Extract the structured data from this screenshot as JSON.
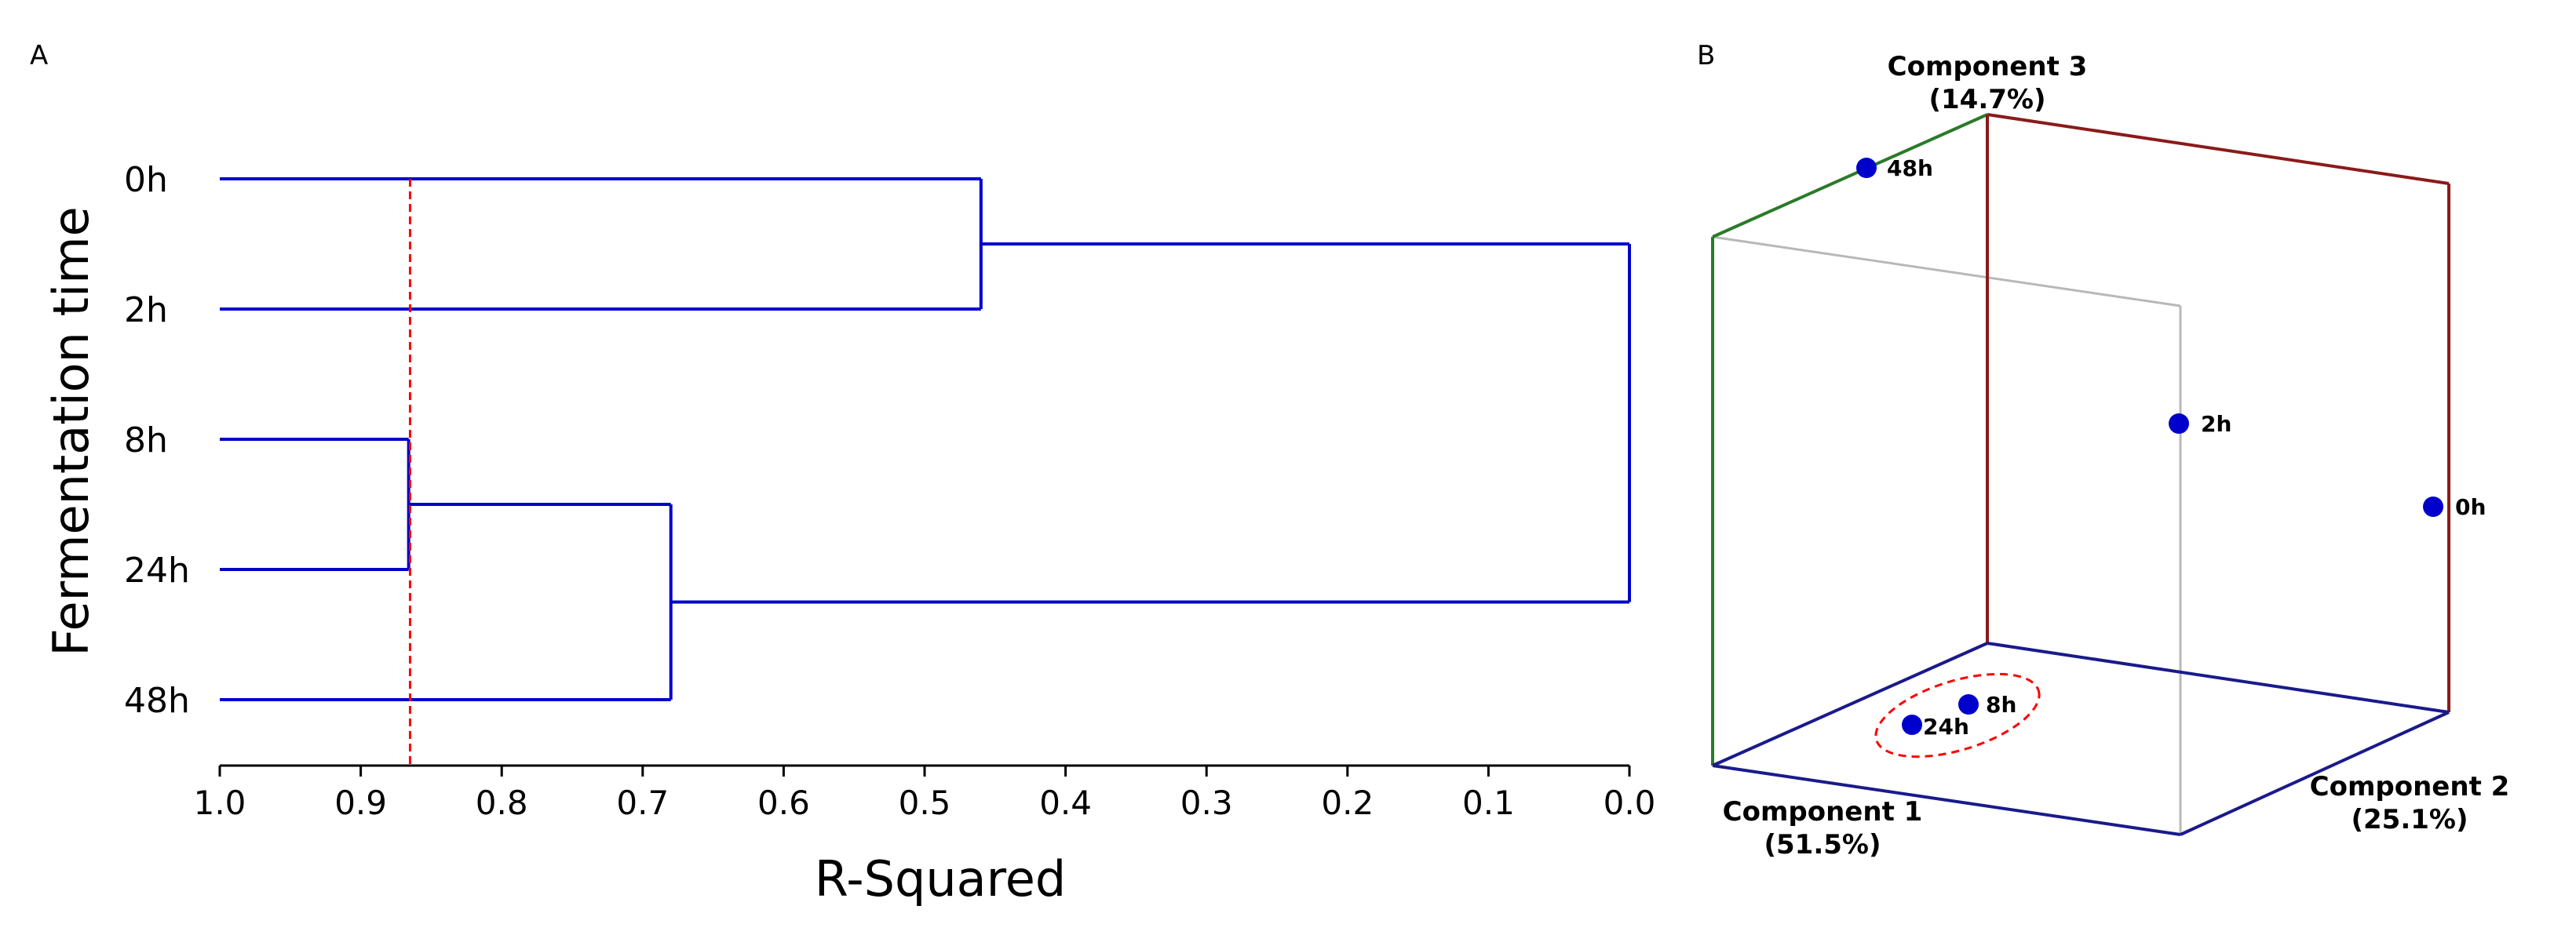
{
  "chart_data": [
    {
      "panel": "A",
      "type": "dendrogram",
      "ylabel": "Fermentation time",
      "xlabel": "R-Squared",
      "xlim": [
        1.0,
        0.0
      ],
      "xticks": [
        "1.0",
        "0.9",
        "0.8",
        "0.7",
        "0.6",
        "0.5",
        "0.4",
        "0.3",
        "0.2",
        "0.1",
        "0.0"
      ],
      "leaves": [
        "0h",
        "2h",
        "8h",
        "24h",
        "48h"
      ],
      "merges": [
        {
          "left": "8h",
          "right": "24h",
          "r_squared": 0.866
        },
        {
          "left": "0h",
          "right": "2h",
          "r_squared": 0.46
        },
        {
          "left": "8h+24h",
          "right": "48h",
          "r_squared": 0.68
        },
        {
          "left": "0h+2h",
          "right": "8h+24h+48h",
          "r_squared": 0.0
        }
      ],
      "cut_line": {
        "r_squared": 0.865,
        "style": "dashed",
        "color": "#ff0000"
      },
      "line_color": "#0000cc"
    },
    {
      "panel": "B",
      "type": "scatter3d",
      "axes": {
        "component1": [
          "Component 1",
          "(51.5%)"
        ],
        "component2": [
          "Component 2",
          "(25.1%)"
        ],
        "component3": [
          "Component 3",
          "(14.7%)"
        ]
      },
      "points": [
        {
          "label": "48h"
        },
        {
          "label": "2h"
        },
        {
          "label": "0h"
        },
        {
          "label": "8h"
        },
        {
          "label": "24h"
        }
      ],
      "cluster_ellipse": {
        "members": [
          "8h",
          "24h"
        ],
        "style": "dashed",
        "color": "#ff0000"
      },
      "point_color": "#0000cc",
      "box_colors": {
        "component1": "#1a1a8c",
        "component2": "#1a1a8c",
        "component3_left": "#2a7a2a",
        "component3_right": "#8b1a1a",
        "hidden": "#b0b0b0"
      }
    }
  ]
}
